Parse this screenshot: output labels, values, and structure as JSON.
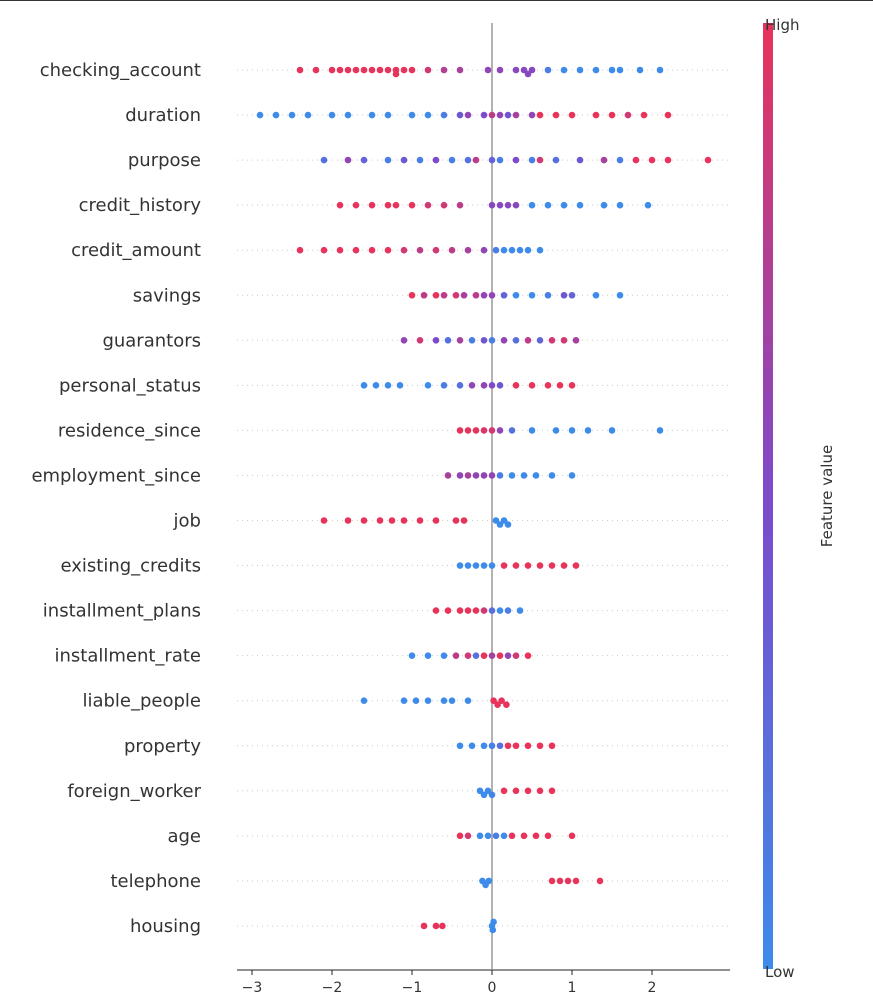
{
  "chart_data": {
    "type": "scatter",
    "subtype": "beeswarm",
    "xlabel": "",
    "xlim": [
      -3.2,
      2.95
    ],
    "xticks": [
      -3,
      -2,
      -1,
      0,
      1,
      2
    ],
    "grid": false,
    "colorbar": {
      "label": "Feature value",
      "high_label": "High",
      "low_label": "Low",
      "colors": {
        "low": "#3d8bea",
        "mid": "#7c4acb",
        "high": "#e8335a"
      }
    },
    "point_format": [
      "shap_value",
      "feature_value_0_to_1"
    ],
    "features": [
      {
        "name": "checking_account",
        "points": [
          [
            -2.4,
            1
          ],
          [
            -2.2,
            1
          ],
          [
            -2.0,
            1
          ],
          [
            -1.9,
            1
          ],
          [
            -1.8,
            1
          ],
          [
            -1.7,
            1
          ],
          [
            -1.6,
            1
          ],
          [
            -1.5,
            1
          ],
          [
            -1.4,
            1
          ],
          [
            -1.3,
            1
          ],
          [
            -1.2,
            1
          ],
          [
            -1.2,
            1
          ],
          [
            -1.1,
            1
          ],
          [
            -1.0,
            1
          ],
          [
            -0.8,
            0.9
          ],
          [
            -0.6,
            0.75
          ],
          [
            -0.4,
            0.7
          ],
          [
            -0.05,
            0.6
          ],
          [
            0.1,
            0.6
          ],
          [
            0.3,
            0.55
          ],
          [
            0.4,
            0.55
          ],
          [
            0.45,
            0.55
          ],
          [
            0.5,
            0.55
          ],
          [
            0.7,
            0.1
          ],
          [
            0.9,
            0
          ],
          [
            1.1,
            0
          ],
          [
            1.3,
            0
          ],
          [
            1.5,
            0
          ],
          [
            1.6,
            0
          ],
          [
            1.85,
            0
          ],
          [
            2.1,
            0
          ]
        ]
      },
      {
        "name": "duration",
        "points": [
          [
            -2.9,
            0
          ],
          [
            -2.7,
            0
          ],
          [
            -2.5,
            0
          ],
          [
            -2.3,
            0
          ],
          [
            -2.0,
            0
          ],
          [
            -1.8,
            0
          ],
          [
            -1.5,
            0
          ],
          [
            -1.3,
            0
          ],
          [
            -1.0,
            0
          ],
          [
            -0.8,
            0
          ],
          [
            -0.6,
            0.1
          ],
          [
            -0.4,
            0.4
          ],
          [
            -0.3,
            0.6
          ],
          [
            -0.1,
            0.5
          ],
          [
            0,
            0.8
          ],
          [
            0.1,
            0.6
          ],
          [
            0.2,
            0.4
          ],
          [
            0.3,
            0.7
          ],
          [
            0.5,
            0.6
          ],
          [
            0.6,
            1
          ],
          [
            0.8,
            1
          ],
          [
            1.0,
            1
          ],
          [
            1.3,
            1
          ],
          [
            1.5,
            1
          ],
          [
            1.7,
            0.9
          ],
          [
            1.9,
            1
          ],
          [
            2.2,
            1
          ]
        ]
      },
      {
        "name": "purpose",
        "points": [
          [
            -2.1,
            0.2
          ],
          [
            -1.8,
            0.6
          ],
          [
            -1.6,
            0.3
          ],
          [
            -1.3,
            0.1
          ],
          [
            -1.1,
            0.4
          ],
          [
            -0.9,
            0.1
          ],
          [
            -0.7,
            0.5
          ],
          [
            -0.5,
            0.1
          ],
          [
            -0.3,
            0.2
          ],
          [
            -0.2,
            0.8
          ],
          [
            0,
            0.3
          ],
          [
            0.1,
            0.1
          ],
          [
            0.3,
            0.5
          ],
          [
            0.5,
            0.1
          ],
          [
            0.6,
            0.9
          ],
          [
            0.8,
            0.2
          ],
          [
            1.1,
            0.4
          ],
          [
            1.4,
            0.7
          ],
          [
            1.6,
            0.1
          ],
          [
            1.8,
            1
          ],
          [
            2.0,
            1
          ],
          [
            2.2,
            1
          ],
          [
            2.7,
            1
          ]
        ]
      },
      {
        "name": "credit_history",
        "points": [
          [
            -1.9,
            1
          ],
          [
            -1.7,
            1
          ],
          [
            -1.5,
            1
          ],
          [
            -1.3,
            1
          ],
          [
            -1.2,
            1
          ],
          [
            -1.0,
            1
          ],
          [
            -0.8,
            0.9
          ],
          [
            -0.6,
            0.9
          ],
          [
            -0.4,
            0.8
          ],
          [
            0.0,
            0.55
          ],
          [
            0.1,
            0.55
          ],
          [
            0.2,
            0.55
          ],
          [
            0.3,
            0.55
          ],
          [
            0.5,
            0
          ],
          [
            0.7,
            0
          ],
          [
            0.9,
            0
          ],
          [
            1.1,
            0
          ],
          [
            1.4,
            0
          ],
          [
            1.6,
            0
          ],
          [
            1.95,
            0
          ]
        ]
      },
      {
        "name": "credit_amount",
        "points": [
          [
            -2.4,
            1
          ],
          [
            -2.1,
            1
          ],
          [
            -1.9,
            1
          ],
          [
            -1.7,
            1
          ],
          [
            -1.5,
            1
          ],
          [
            -1.3,
            1
          ],
          [
            -1.1,
            0.9
          ],
          [
            -0.9,
            0.8
          ],
          [
            -0.7,
            0.9
          ],
          [
            -0.5,
            0.8
          ],
          [
            -0.3,
            0.7
          ],
          [
            -0.1,
            0.6
          ],
          [
            0.05,
            0.1
          ],
          [
            0.15,
            0
          ],
          [
            0.25,
            0
          ],
          [
            0.35,
            0
          ],
          [
            0.45,
            0
          ],
          [
            0.6,
            0
          ]
        ]
      },
      {
        "name": "savings",
        "points": [
          [
            -1.0,
            1
          ],
          [
            -0.85,
            0.8
          ],
          [
            -0.7,
            1
          ],
          [
            -0.6,
            0.8
          ],
          [
            -0.45,
            0.9
          ],
          [
            -0.35,
            0.7
          ],
          [
            -0.2,
            0.8
          ],
          [
            -0.1,
            0.6
          ],
          [
            0,
            0.6
          ],
          [
            0.15,
            0.3
          ],
          [
            0.3,
            0
          ],
          [
            0.5,
            0
          ],
          [
            0.7,
            0.1
          ],
          [
            0.9,
            0.4
          ],
          [
            1.0,
            0.3
          ],
          [
            1.3,
            0
          ],
          [
            1.6,
            0
          ]
        ]
      },
      {
        "name": "guarantors",
        "points": [
          [
            -1.1,
            0.6
          ],
          [
            -0.9,
            0.9
          ],
          [
            -0.7,
            0.5
          ],
          [
            -0.55,
            0.2
          ],
          [
            -0.4,
            0.7
          ],
          [
            -0.25,
            0.1
          ],
          [
            -0.1,
            0.4
          ],
          [
            0,
            0.1
          ],
          [
            0.15,
            0.6
          ],
          [
            0.3,
            0.2
          ],
          [
            0.45,
            0.8
          ],
          [
            0.6,
            0.3
          ],
          [
            0.75,
            0.9
          ],
          [
            0.9,
            0.9
          ],
          [
            1.05,
            0.7
          ]
        ]
      },
      {
        "name": "personal_status",
        "points": [
          [
            -1.6,
            0
          ],
          [
            -1.45,
            0
          ],
          [
            -1.3,
            0
          ],
          [
            -1.15,
            0
          ],
          [
            -0.8,
            0
          ],
          [
            -0.6,
            0.1
          ],
          [
            -0.4,
            0.2
          ],
          [
            -0.25,
            0.6
          ],
          [
            -0.1,
            0.6
          ],
          [
            0,
            0.5
          ],
          [
            0.1,
            0.4
          ],
          [
            0.3,
            1
          ],
          [
            0.5,
            1
          ],
          [
            0.7,
            1
          ],
          [
            0.85,
            1
          ],
          [
            1.0,
            1
          ]
        ]
      },
      {
        "name": "residence_since",
        "points": [
          [
            -0.4,
            1
          ],
          [
            -0.3,
            1
          ],
          [
            -0.2,
            1
          ],
          [
            -0.1,
            0.95
          ],
          [
            0,
            0.9
          ],
          [
            0.1,
            0.6
          ],
          [
            0.25,
            0.2
          ],
          [
            0.5,
            0
          ],
          [
            0.8,
            0
          ],
          [
            1.0,
            0
          ],
          [
            1.2,
            0
          ],
          [
            1.5,
            0
          ],
          [
            2.1,
            0
          ]
        ]
      },
      {
        "name": "employment_since",
        "points": [
          [
            -0.55,
            0.7
          ],
          [
            -0.4,
            0.6
          ],
          [
            -0.3,
            0.7
          ],
          [
            -0.2,
            0.6
          ],
          [
            -0.1,
            0.6
          ],
          [
            0,
            0.6
          ],
          [
            0.1,
            0.1
          ],
          [
            0.25,
            0
          ],
          [
            0.4,
            0
          ],
          [
            0.55,
            0
          ],
          [
            0.75,
            0
          ],
          [
            1.0,
            0
          ]
        ]
      },
      {
        "name": "job",
        "points": [
          [
            -2.1,
            1
          ],
          [
            -1.8,
            1
          ],
          [
            -1.6,
            1
          ],
          [
            -1.4,
            1
          ],
          [
            -1.25,
            1
          ],
          [
            -1.1,
            1
          ],
          [
            -0.9,
            1
          ],
          [
            -0.7,
            1
          ],
          [
            -0.45,
            1
          ],
          [
            -0.35,
            1
          ],
          [
            0.05,
            0
          ],
          [
            0.1,
            0
          ],
          [
            0.15,
            0
          ],
          [
            0.2,
            0
          ]
        ]
      },
      {
        "name": "existing_credits",
        "points": [
          [
            -0.4,
            0
          ],
          [
            -0.3,
            0
          ],
          [
            -0.2,
            0
          ],
          [
            -0.1,
            0
          ],
          [
            0,
            0
          ],
          [
            0.15,
            1
          ],
          [
            0.3,
            1
          ],
          [
            0.45,
            1
          ],
          [
            0.6,
            1
          ],
          [
            0.75,
            1
          ],
          [
            0.9,
            1
          ],
          [
            1.05,
            1
          ]
        ]
      },
      {
        "name": "installment_plans",
        "points": [
          [
            -0.7,
            1
          ],
          [
            -0.55,
            1
          ],
          [
            -0.4,
            1
          ],
          [
            -0.3,
            1
          ],
          [
            -0.2,
            1
          ],
          [
            -0.1,
            0.9
          ],
          [
            0,
            0.2
          ],
          [
            0.1,
            0
          ],
          [
            0.2,
            0.1
          ],
          [
            0.35,
            0
          ]
        ]
      },
      {
        "name": "installment_rate",
        "points": [
          [
            -1.0,
            0
          ],
          [
            -0.8,
            0
          ],
          [
            -0.6,
            0
          ],
          [
            -0.45,
            0.8
          ],
          [
            -0.3,
            0.9
          ],
          [
            -0.2,
            0.2
          ],
          [
            -0.1,
            1
          ],
          [
            0,
            0.7
          ],
          [
            0.1,
            1
          ],
          [
            0.2,
            0.6
          ],
          [
            0.3,
            0.9
          ],
          [
            0.45,
            1
          ]
        ]
      },
      {
        "name": "liable_people",
        "points": [
          [
            -1.6,
            0
          ],
          [
            -1.1,
            0
          ],
          [
            -0.95,
            0
          ],
          [
            -0.8,
            0
          ],
          [
            -0.6,
            0
          ],
          [
            -0.5,
            0
          ],
          [
            -0.3,
            0
          ],
          [
            0.02,
            1
          ],
          [
            0.07,
            1
          ],
          [
            0.12,
            1
          ],
          [
            0.18,
            1
          ]
        ]
      },
      {
        "name": "property",
        "points": [
          [
            -0.4,
            0
          ],
          [
            -0.25,
            0
          ],
          [
            -0.1,
            0
          ],
          [
            0,
            0.1
          ],
          [
            0.1,
            0.2
          ],
          [
            0.2,
            1
          ],
          [
            0.3,
            1
          ],
          [
            0.45,
            1
          ],
          [
            0.6,
            1
          ],
          [
            0.75,
            1
          ]
        ]
      },
      {
        "name": "foreign_worker",
        "points": [
          [
            -0.15,
            0
          ],
          [
            -0.1,
            0
          ],
          [
            -0.05,
            0
          ],
          [
            0,
            0.05
          ],
          [
            0.15,
            1
          ],
          [
            0.3,
            1
          ],
          [
            0.45,
            1
          ],
          [
            0.6,
            1
          ],
          [
            0.75,
            1
          ]
        ]
      },
      {
        "name": "age",
        "points": [
          [
            -0.4,
            1
          ],
          [
            -0.3,
            0.9
          ],
          [
            -0.15,
            0
          ],
          [
            -0.05,
            0
          ],
          [
            0.05,
            0.1
          ],
          [
            0.15,
            0
          ],
          [
            0.25,
            1
          ],
          [
            0.4,
            1
          ],
          [
            0.55,
            1
          ],
          [
            0.7,
            1
          ],
          [
            1.0,
            1
          ]
        ]
      },
      {
        "name": "telephone",
        "points": [
          [
            -0.12,
            0
          ],
          [
            -0.08,
            0
          ],
          [
            -0.04,
            0
          ],
          [
            0.75,
            1
          ],
          [
            0.85,
            1
          ],
          [
            0.95,
            1
          ],
          [
            1.05,
            1
          ],
          [
            1.35,
            1
          ]
        ]
      },
      {
        "name": "housing",
        "points": [
          [
            -0.85,
            1
          ],
          [
            -0.7,
            1
          ],
          [
            -0.62,
            1
          ],
          [
            0.0,
            0
          ],
          [
            0.01,
            0
          ],
          [
            0.02,
            0
          ]
        ]
      }
    ]
  }
}
